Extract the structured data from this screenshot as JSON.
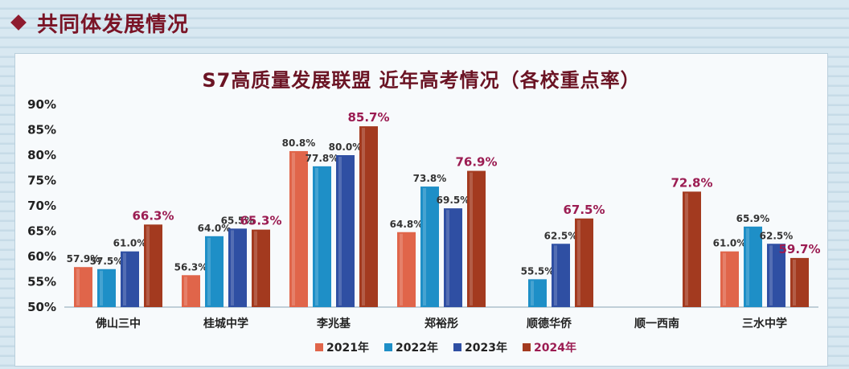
{
  "header": {
    "title": "共同体发展情况"
  },
  "chart_data": {
    "type": "bar",
    "title": "S7高质量发展联盟 近年高考情况（各校重点率）",
    "categories": [
      "佛山三中",
      "桂城中学",
      "李兆基",
      "郑裕彤",
      "顺德华侨",
      "顺一西南",
      "三水中学"
    ],
    "series": [
      {
        "name": "2021年",
        "values": [
          57.9,
          56.3,
          80.8,
          64.8,
          null,
          null,
          61.0
        ],
        "labels": [
          "57.9%",
          "56.3%",
          "80.8%",
          "64.8%",
          "",
          "",
          "61.0%"
        ],
        "color": "#e0654a"
      },
      {
        "name": "2022年",
        "values": [
          57.5,
          64.0,
          77.8,
          73.8,
          55.5,
          null,
          65.9
        ],
        "labels": [
          "57.5%",
          "64.0%",
          "77.8%",
          "73.8%",
          "55.5%",
          "",
          "65.9%"
        ],
        "color": "#1e8fc7"
      },
      {
        "name": "2023年",
        "values": [
          61.0,
          65.5,
          80.0,
          69.5,
          62.5,
          null,
          62.5
        ],
        "labels": [
          "61.0%",
          "65.5%",
          "80.0%",
          "69.5%",
          "62.5%",
          "",
          "62.5%"
        ],
        "color": "#2f4fa3"
      },
      {
        "name": "2024年",
        "values": [
          66.3,
          65.3,
          85.7,
          76.9,
          67.5,
          72.8,
          59.7
        ],
        "labels": [
          "66.3%",
          "65.3%",
          "85.7%",
          "76.9%",
          "67.5%",
          "72.8%",
          "59.7%"
        ],
        "color": "#a33a1f"
      }
    ],
    "ylim": [
      50,
      90
    ],
    "yticks": [
      "50%",
      "55%",
      "60%",
      "65%",
      "70%",
      "75%",
      "80%",
      "85%",
      "90%"
    ],
    "ytick_values": [
      50,
      55,
      60,
      65,
      70,
      75,
      80,
      85,
      90
    ],
    "grid": false,
    "legend_position": "bottom"
  }
}
